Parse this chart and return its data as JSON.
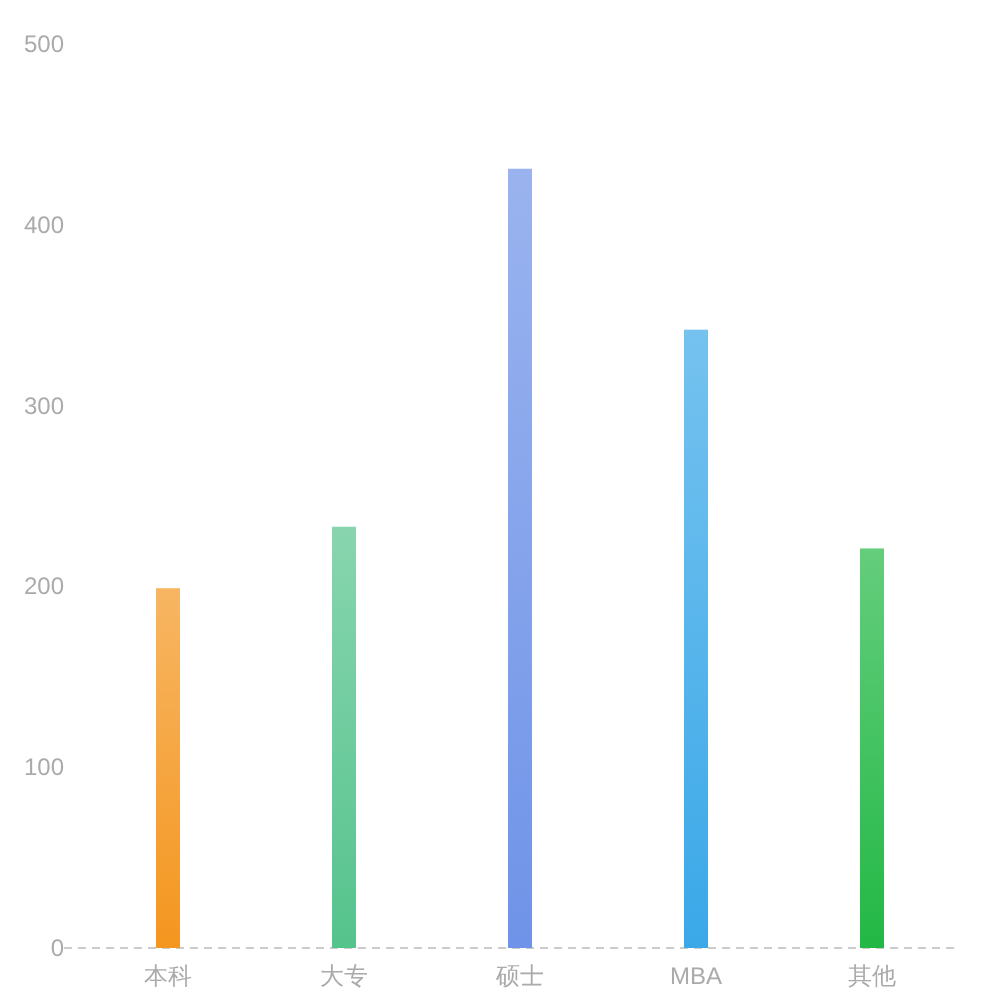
{
  "chart_data": {
    "type": "bar",
    "categories": [
      "本科",
      "大专",
      "硕士",
      "MBA",
      "其他"
    ],
    "values": [
      199,
      233,
      431,
      342,
      221
    ],
    "colors": [
      "#f4961f",
      "#55c38c",
      "#6f93e8",
      "#3aa8e8",
      "#22b845"
    ],
    "ylim": [
      0,
      500
    ],
    "yticks": [
      0,
      100,
      200,
      300,
      400,
      500
    ],
    "grid": false
  }
}
